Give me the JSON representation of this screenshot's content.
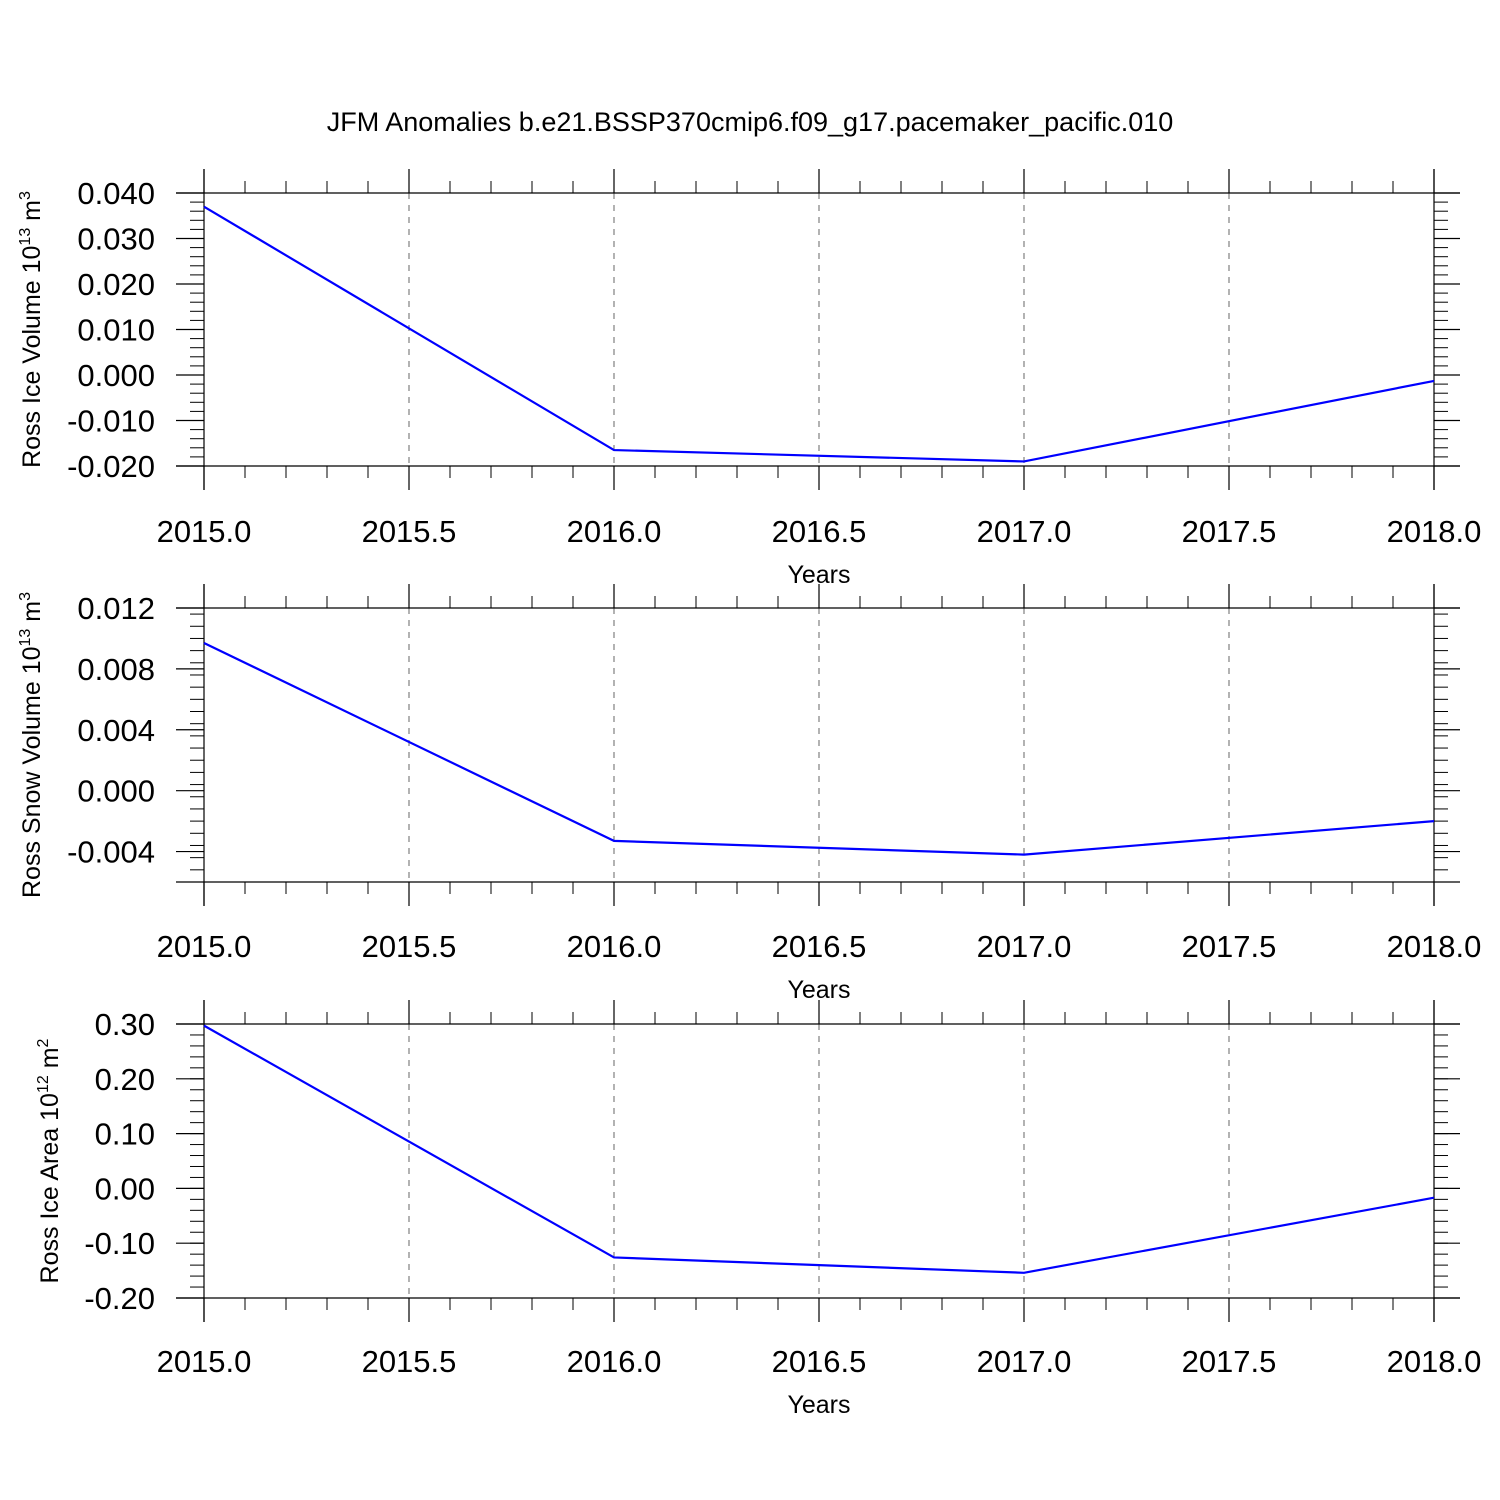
{
  "title": "JFM Anomalies b.e21.BSSP370cmip6.f09_g17.pacemaker_pacific.010",
  "chart_data": [
    {
      "type": "line",
      "xlabel": "Years",
      "ylabel": "Ross Ice Volume 10",
      "ylabel_exp": "13",
      "ylabel_unit": " m",
      "ylabel_unit_exp": "3",
      "x": [
        2015.0,
        2016.0,
        2017.0,
        2018.0
      ],
      "series": [
        {
          "values": [
            0.037,
            -0.0165,
            -0.019,
            -0.0013
          ],
          "color": "#0000ff"
        }
      ],
      "xlim": [
        2015.0,
        2018.0
      ],
      "ylim": [
        -0.02,
        0.04
      ],
      "xticks": [
        "2015.0",
        "2015.5",
        "2016.0",
        "2016.5",
        "2017.0",
        "2017.5",
        "2018.0"
      ],
      "yticks": [
        "0.040",
        "0.030",
        "0.020",
        "0.010",
        "0.000",
        "-0.010",
        "-0.020"
      ],
      "grid": "vertical dashed"
    },
    {
      "type": "line",
      "xlabel": "Years",
      "ylabel": "Ross Snow Volume 10",
      "ylabel_exp": "13",
      "ylabel_unit": " m",
      "ylabel_unit_exp": "3",
      "x": [
        2015.0,
        2016.0,
        2017.0,
        2018.0
      ],
      "series": [
        {
          "values": [
            0.0097,
            -0.0033,
            -0.0042,
            -0.002
          ],
          "color": "#0000ff"
        }
      ],
      "xlim": [
        2015.0,
        2018.0
      ],
      "ylim": [
        -0.006,
        0.012
      ],
      "xticks": [
        "2015.0",
        "2015.5",
        "2016.0",
        "2016.5",
        "2017.0",
        "2017.5",
        "2018.0"
      ],
      "yticks": [
        "0.012",
        "0.008",
        "0.004",
        "0.000",
        "-0.004"
      ],
      "grid": "vertical dashed"
    },
    {
      "type": "line",
      "xlabel": "Years",
      "ylabel": "Ross Ice Area 10",
      "ylabel_exp": "12",
      "ylabel_unit": " m",
      "ylabel_unit_exp": "2",
      "x": [
        2015.0,
        2016.0,
        2017.0,
        2018.0
      ],
      "series": [
        {
          "values": [
            0.297,
            -0.126,
            -0.154,
            -0.017
          ],
          "color": "#0000ff"
        }
      ],
      "xlim": [
        2015.0,
        2018.0
      ],
      "ylim": [
        -0.2,
        0.3
      ],
      "xticks": [
        "2015.0",
        "2015.5",
        "2016.0",
        "2016.5",
        "2017.0",
        "2017.5",
        "2018.0"
      ],
      "yticks": [
        "0.30",
        "0.20",
        "0.10",
        "0.00",
        "-0.10",
        "-0.20"
      ],
      "grid": "vertical dashed"
    }
  ]
}
